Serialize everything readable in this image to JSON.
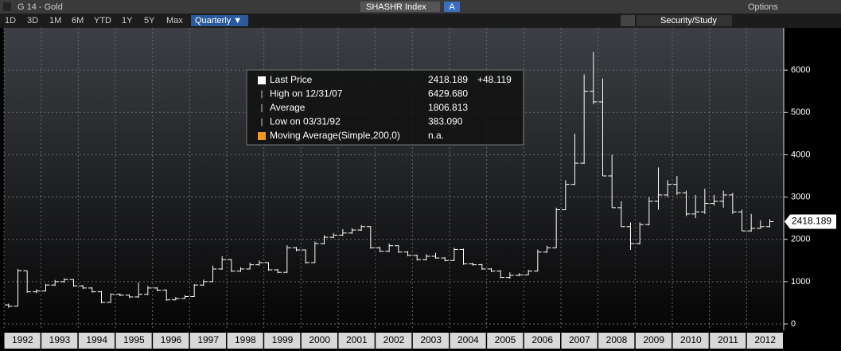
{
  "header": {
    "security": "G 14 - Gold",
    "ticker": "SHASHR Index",
    "ticker_flag": "A",
    "options": "Options",
    "ranges": [
      "1D",
      "3D",
      "1M",
      "6M",
      "YTD",
      "1Y",
      "5Y",
      "Max"
    ],
    "period": "Quarterly ▼",
    "study": "Security/Study"
  },
  "legend": {
    "rows": [
      {
        "name": "Last Price",
        "value": "2418.189",
        "change": "+48.119"
      },
      {
        "name": "High on 12/31/07",
        "value": "6429.680"
      },
      {
        "name": "Average",
        "value": "1806.813"
      },
      {
        "name": "Low on 03/31/92",
        "value": "383.090"
      },
      {
        "name": "Moving Average(Simple,200,0)",
        "value": "n.a."
      }
    ]
  },
  "chart_data": {
    "type": "ohlc",
    "color": "#ffffff",
    "grid": true,
    "last_label": "2418.189",
    "xlim": [
      1992,
      2013
    ],
    "xticks": [
      1992,
      1993,
      1994,
      1995,
      1996,
      1997,
      1998,
      1999,
      2000,
      2001,
      2002,
      2003,
      2004,
      2005,
      2006,
      2007,
      2008,
      2009,
      2010,
      2011,
      2012
    ],
    "ylim": [
      -150,
      7000
    ],
    "yticks": [
      0,
      1000,
      2000,
      3000,
      4000,
      5000,
      6000
    ],
    "x": [
      1992,
      1992.25,
      1992.5,
      1992.75,
      1993,
      1993.25,
      1993.5,
      1993.75,
      1994,
      1994.25,
      1994.5,
      1994.75,
      1995,
      1995.25,
      1995.5,
      1995.75,
      1996,
      1996.25,
      1996.5,
      1996.75,
      1997,
      1997.25,
      1997.5,
      1997.75,
      1998,
      1998.25,
      1998.5,
      1998.75,
      1999,
      1999.25,
      1999.5,
      1999.75,
      2000,
      2000.25,
      2000.5,
      2000.75,
      2001,
      2001.25,
      2001.5,
      2001.75,
      2002,
      2002.25,
      2002.5,
      2002.75,
      2003,
      2003.25,
      2003.5,
      2003.75,
      2004,
      2004.25,
      2004.5,
      2004.75,
      2005,
      2005.25,
      2005.5,
      2005.75,
      2006,
      2006.25,
      2006.5,
      2006.75,
      2007,
      2007.25,
      2007.5,
      2007.75,
      2008,
      2008.25,
      2008.5,
      2008.75,
      2009,
      2009.25,
      2009.5,
      2009.75,
      2010,
      2010.25,
      2010.5,
      2010.75,
      2011,
      2011.25,
      2011.5,
      2011.75,
      2012,
      2012.25,
      2012.5
    ],
    "bars": [
      [
        450,
        480,
        383.09,
        420
      ],
      [
        420,
        1300,
        420,
        1260
      ],
      [
        1260,
        1260,
        740,
        760
      ],
      [
        760,
        820,
        730,
        780
      ],
      [
        780,
        950,
        770,
        920
      ],
      [
        920,
        1040,
        900,
        1000
      ],
      [
        1000,
        1080,
        980,
        1050
      ],
      [
        1050,
        1060,
        880,
        900
      ],
      [
        900,
        920,
        830,
        850
      ],
      [
        850,
        870,
        740,
        760
      ],
      [
        760,
        780,
        490,
        510
      ],
      [
        510,
        720,
        500,
        700
      ],
      [
        700,
        720,
        660,
        680
      ],
      [
        680,
        700,
        620,
        640
      ],
      [
        640,
        980,
        620,
        700
      ],
      [
        700,
        900,
        680,
        850
      ],
      [
        850,
        870,
        780,
        800
      ],
      [
        800,
        820,
        550,
        570
      ],
      [
        570,
        640,
        560,
        600
      ],
      [
        600,
        680,
        590,
        650
      ],
      [
        650,
        940,
        640,
        920
      ],
      [
        920,
        1050,
        900,
        1000
      ],
      [
        1000,
        1380,
        990,
        1300
      ],
      [
        1300,
        1600,
        1280,
        1520
      ],
      [
        1520,
        1530,
        1230,
        1250
      ],
      [
        1250,
        1340,
        1230,
        1300
      ],
      [
        1300,
        1450,
        1290,
        1400
      ],
      [
        1400,
        1500,
        1380,
        1450
      ],
      [
        1450,
        1460,
        1260,
        1280
      ],
      [
        1280,
        1300,
        1200,
        1220
      ],
      [
        1220,
        1860,
        1210,
        1800
      ],
      [
        1800,
        1820,
        1720,
        1750
      ],
      [
        1750,
        1760,
        1430,
        1450
      ],
      [
        1450,
        1950,
        1440,
        1900
      ],
      [
        1900,
        2100,
        1880,
        2050
      ],
      [
        2050,
        2150,
        2030,
        2100
      ],
      [
        2100,
        2240,
        2080,
        2150
      ],
      [
        2150,
        2260,
        2130,
        2220
      ],
      [
        2220,
        2340,
        2200,
        2300
      ],
      [
        2300,
        2310,
        1780,
        1800
      ],
      [
        1800,
        1820,
        1700,
        1720
      ],
      [
        1720,
        1900,
        1700,
        1850
      ],
      [
        1850,
        1860,
        1680,
        1700
      ],
      [
        1700,
        1720,
        1600,
        1620
      ],
      [
        1620,
        1640,
        1500,
        1520
      ],
      [
        1520,
        1650,
        1500,
        1600
      ],
      [
        1600,
        1680,
        1540,
        1560
      ],
      [
        1560,
        1580,
        1480,
        1500
      ],
      [
        1500,
        1800,
        1490,
        1760
      ],
      [
        1760,
        1780,
        1400,
        1420
      ],
      [
        1420,
        1450,
        1380,
        1400
      ],
      [
        1400,
        1420,
        1280,
        1300
      ],
      [
        1300,
        1320,
        1230,
        1250
      ],
      [
        1250,
        1270,
        1080,
        1100
      ],
      [
        1100,
        1220,
        1070,
        1150
      ],
      [
        1150,
        1200,
        1130,
        1160
      ],
      [
        1160,
        1280,
        1150,
        1250
      ],
      [
        1250,
        1760,
        1240,
        1700
      ],
      [
        1700,
        1850,
        1680,
        1800
      ],
      [
        1800,
        2750,
        1790,
        2700
      ],
      [
        2700,
        3400,
        2690,
        3300
      ],
      [
        3300,
        4500,
        3290,
        3800
      ],
      [
        3800,
        5900,
        3780,
        5500
      ],
      [
        5500,
        6429.68,
        5200,
        5250
      ],
      [
        5250,
        5800,
        3500,
        3500
      ],
      [
        3500,
        4000,
        2750,
        2750
      ],
      [
        2750,
        2900,
        2300,
        2300
      ],
      [
        2300,
        2400,
        1750,
        1900
      ],
      [
        1900,
        2400,
        1880,
        2350
      ],
      [
        2350,
        3000,
        2330,
        2900
      ],
      [
        2900,
        3700,
        2700,
        3050
      ],
      [
        3050,
        3400,
        3000,
        3300
      ],
      [
        3300,
        3500,
        3050,
        3100
      ],
      [
        3100,
        3150,
        2550,
        2600
      ],
      [
        2600,
        3050,
        2500,
        2650
      ],
      [
        2650,
        3200,
        2600,
        2850
      ],
      [
        2850,
        3050,
        2800,
        2900
      ],
      [
        2900,
        3150,
        2750,
        3050
      ],
      [
        3050,
        3100,
        2600,
        2650
      ],
      [
        2650,
        2700,
        2200,
        2200
      ],
      [
        2200,
        2600,
        2180,
        2260
      ],
      [
        2260,
        2450,
        2250,
        2300
      ],
      [
        2300,
        2480,
        2290,
        2418.189
      ]
    ]
  }
}
